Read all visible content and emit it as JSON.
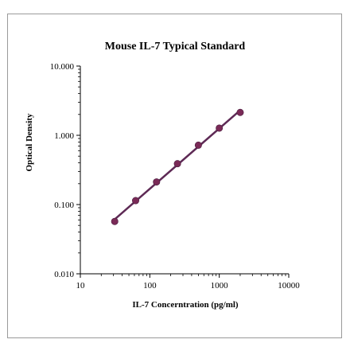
{
  "chart_data": {
    "type": "scatter",
    "title": "Mouse IL-7 Typical Standard",
    "xlabel": "IL-7 Concerntration (pg/ml)",
    "ylabel": "Optical Density",
    "x_scale": "log",
    "y_scale": "log",
    "xlim": [
      10,
      10000
    ],
    "ylim": [
      0.01,
      10
    ],
    "x_ticks": [
      "10",
      "100",
      "1000",
      "10000"
    ],
    "y_ticks": [
      "0.010",
      "0.100",
      "1.000",
      "10.000"
    ],
    "grid": false,
    "legend": "none",
    "series": [
      {
        "x": [
          31.25,
          62.5,
          125,
          250,
          500,
          1000,
          2000
        ],
        "y": [
          0.057,
          0.114,
          0.212,
          0.389,
          0.72,
          1.27,
          2.14
        ],
        "trendline": true
      }
    ],
    "colors": {
      "marker": "#7a2a57",
      "line": "#5e2a55",
      "axis": "#000000"
    }
  }
}
